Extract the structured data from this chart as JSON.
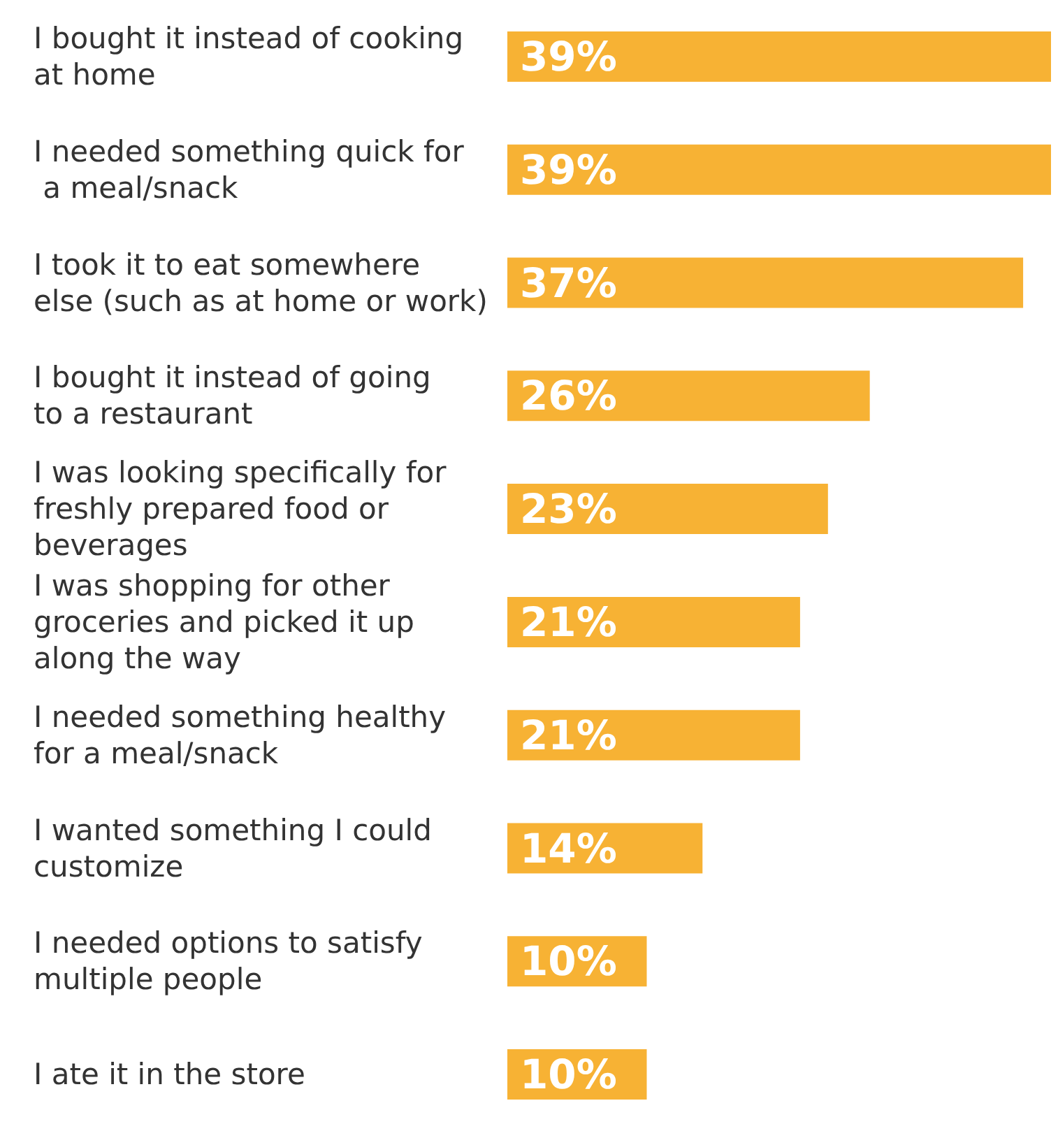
{
  "chart_data": {
    "type": "bar",
    "orientation": "horizontal",
    "categories": [
      "I bought it instead of cooking\nat home",
      "I needed something quick for\n a meal/snack",
      "I took it to eat somewhere\nelse (such as at home or work)",
      "I bought it instead of going\nto a restaurant",
      "I was looking specifically for\nfreshly prepared food or\nbeverages",
      "I was shopping for other\ngroceries and picked it up\nalong the way",
      "I needed something healthy\nfor a meal/snack",
      "I wanted something I could\ncustomize",
      "I needed options to satisfy\nmultiple people",
      "I ate it in the store"
    ],
    "values": [
      39,
      39,
      37,
      26,
      23,
      21,
      21,
      14,
      10,
      10
    ],
    "value_labels": [
      "39%",
      "39%",
      "37%",
      "26%",
      "23%",
      "21%",
      "21%",
      "14%",
      "10%",
      "10%"
    ],
    "color": "#f7b234"
  }
}
